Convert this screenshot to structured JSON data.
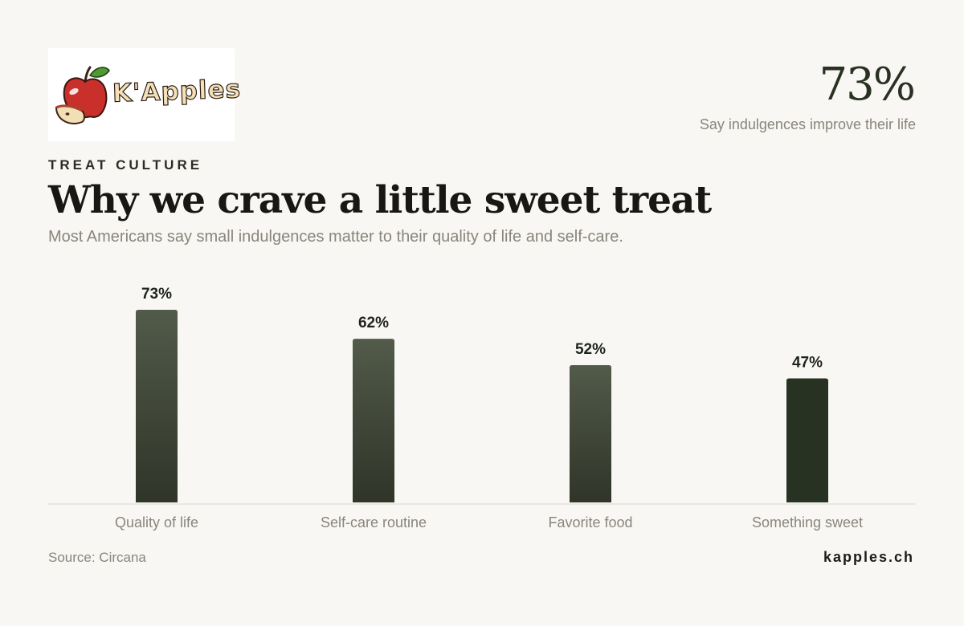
{
  "brand": {
    "logo_text": "K'Apples",
    "site": "kapples.ch"
  },
  "stat": {
    "value": "73%",
    "label": "Say indulgences improve their life"
  },
  "header": {
    "eyebrow": "TREAT CULTURE",
    "title": "Why we crave a little sweet treat",
    "subtitle": "Most Americans say small indulgences matter to their quality of life and self-care."
  },
  "footer": {
    "source": "Source: Circana"
  },
  "colors": {
    "bar_top": "#525a4a",
    "bar_bottom": "#2f3528",
    "bar_highlight": "#283222",
    "axis": "#dcd9d3",
    "label_text": "#8a857d",
    "value_text": "#1f231d"
  },
  "chart_data": {
    "type": "bar",
    "categories": [
      "Quality of life",
      "Self-care routine",
      "Favorite food",
      "Something sweet"
    ],
    "values": [
      73,
      62,
      52,
      47
    ],
    "data_labels": [
      "73%",
      "62%",
      "52%",
      "47%"
    ],
    "ylim": [
      0,
      73
    ],
    "grid": false,
    "legend": "none"
  }
}
